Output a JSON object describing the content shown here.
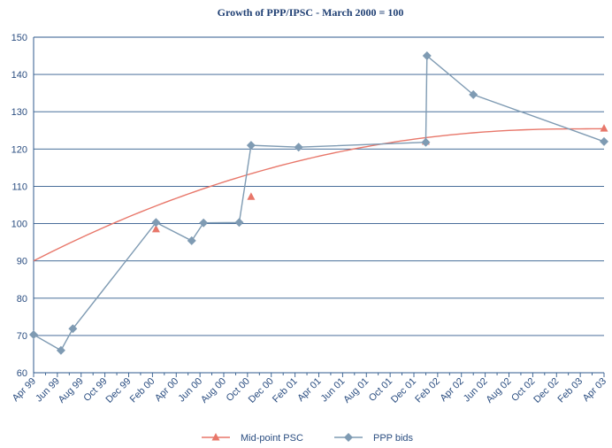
{
  "chart_data": {
    "type": "line",
    "title": "Growth of PPP/IPSC - March 2000 = 100",
    "xlabel": "",
    "ylabel": "",
    "ylim": [
      60,
      150
    ],
    "y_ticks": [
      "60",
      "70",
      "80",
      "90",
      "100",
      "110",
      "120",
      "130",
      "140",
      "150"
    ],
    "x_ticks": [
      "Apr 99",
      "Jun 99",
      "Aug 99",
      "Oct 99",
      "Dec 99",
      "Feb 00",
      "Apr 00",
      "Jun 00",
      "Aug 00",
      "Oct 00",
      "Dec 00",
      "Feb 01",
      "Apr 01",
      "Jun 01",
      "Aug 01",
      "Oct 01",
      "Dec 01",
      "Feb 02",
      "Apr 02",
      "Jun 02",
      "Aug 02",
      "Oct 02",
      "Dec 02",
      "Feb 03",
      "Apr 03"
    ],
    "grid": "horizontal",
    "legend_position": "bottom",
    "series": [
      {
        "name": "Mid-point PSC",
        "color": "#e8776a",
        "marker": "triangle",
        "curve": {
          "x": [
            0,
            48
          ],
          "y_start": 90,
          "y_peak": 125.4,
          "x_peak": 45.5
        },
        "points": [
          {
            "x": 10.3,
            "y": 98.5
          },
          {
            "x": 18.3,
            "y": 107.2
          },
          {
            "x": 33.0,
            "y": 122.0
          },
          {
            "x": 48.0,
            "y": 125.5
          }
        ]
      },
      {
        "name": "PPP bids",
        "color": "#7f9bb3",
        "marker": "diamond",
        "points": [
          {
            "x": 0.0,
            "y": 70.2
          },
          {
            "x": 2.3,
            "y": 66.0
          },
          {
            "x": 3.3,
            "y": 71.8
          },
          {
            "x": 10.3,
            "y": 100.3
          },
          {
            "x": 13.3,
            "y": 95.4
          },
          {
            "x": 14.3,
            "y": 100.2
          },
          {
            "x": 17.3,
            "y": 100.3
          },
          {
            "x": 18.3,
            "y": 121.0
          },
          {
            "x": 22.3,
            "y": 120.5
          },
          {
            "x": 33.0,
            "y": 121.8
          },
          {
            "x": 33.1,
            "y": 145.0
          },
          {
            "x": 37.0,
            "y": 134.6
          },
          {
            "x": 48.0,
            "y": 122.0
          }
        ]
      }
    ]
  },
  "legend": [
    {
      "label": "Mid-point PSC",
      "color": "#e8776a",
      "marker": "triangle"
    },
    {
      "label": "PPP bids",
      "color": "#7f9bb3",
      "marker": "diamond"
    }
  ]
}
